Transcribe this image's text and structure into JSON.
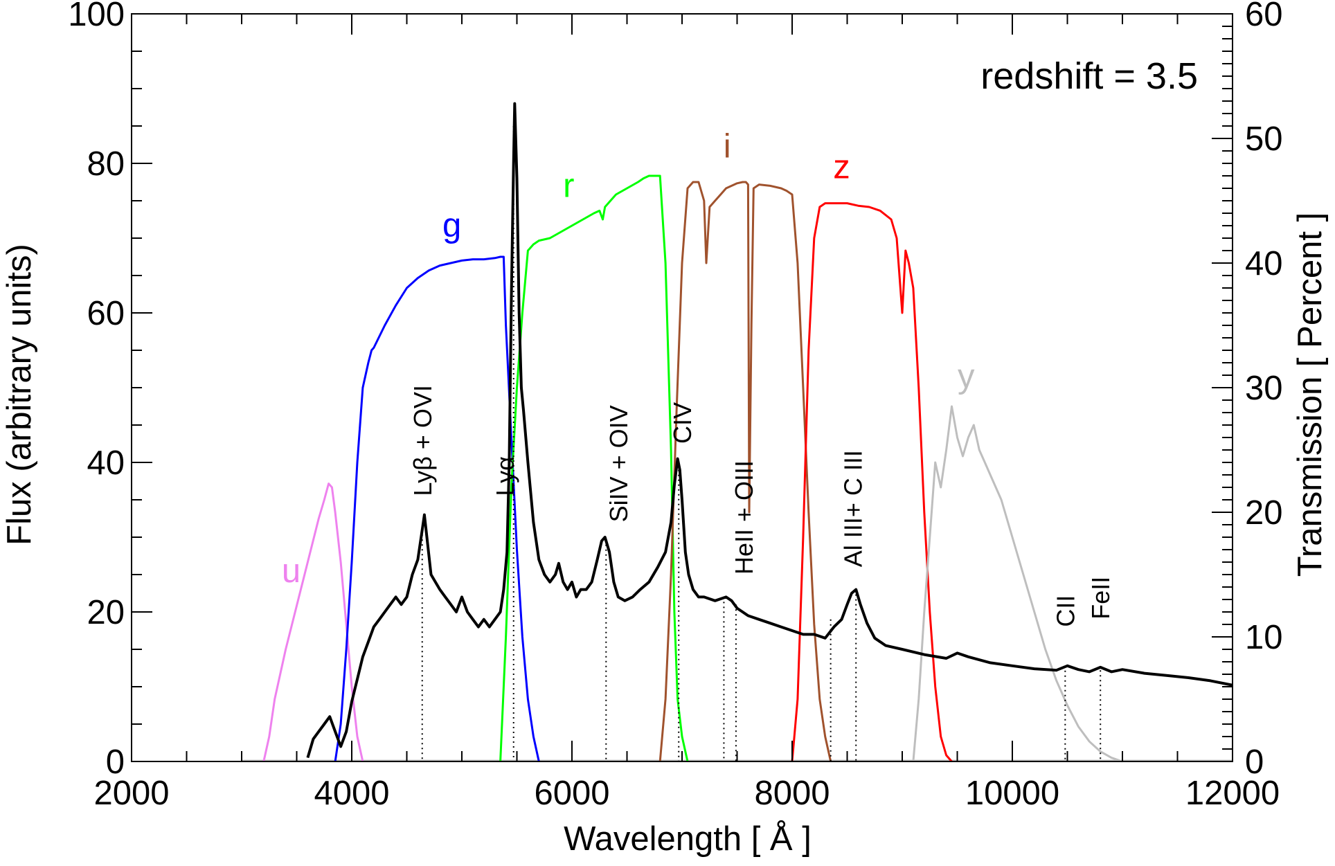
{
  "chart_data": {
    "type": "line",
    "title": "",
    "annotation": "redshift = 3.5",
    "xlabel": "Wavelength [ Å ]",
    "ylabel": "Flux (arbitrary units)",
    "y2label": "Transmission [ Percent ]",
    "xlim": [
      2000,
      12000
    ],
    "ylim": [
      0,
      100
    ],
    "y2lim": [
      0,
      60
    ],
    "xticks": [
      2000,
      4000,
      6000,
      8000,
      10000,
      12000
    ],
    "yticks": [
      0,
      20,
      40,
      60,
      80,
      100
    ],
    "y2ticks": [
      0,
      10,
      20,
      30,
      40,
      50,
      60
    ],
    "spectrum": {
      "name": "quasar spectrum",
      "color": "#000000",
      "x": [
        3600,
        3650,
        3700,
        3750,
        3800,
        3850,
        3900,
        3950,
        4000,
        4050,
        4100,
        4150,
        4200,
        4250,
        4300,
        4350,
        4400,
        4450,
        4500,
        4550,
        4600,
        4640,
        4660,
        4690,
        4720,
        4760,
        4800,
        4850,
        4900,
        4950,
        5000,
        5050,
        5100,
        5150,
        5200,
        5250,
        5300,
        5350,
        5380,
        5410,
        5430,
        5450,
        5470,
        5480,
        5500,
        5520,
        5540,
        5560,
        5600,
        5650,
        5700,
        5750,
        5800,
        5850,
        5880,
        5920,
        5960,
        6000,
        6040,
        6080,
        6130,
        6180,
        6230,
        6270,
        6300,
        6340,
        6380,
        6420,
        6480,
        6550,
        6620,
        6700,
        6780,
        6850,
        6900,
        6930,
        6960,
        6980,
        7000,
        7030,
        7060,
        7100,
        7150,
        7200,
        7300,
        7400,
        7450,
        7500,
        7550,
        7600,
        7700,
        7800,
        7900,
        8000,
        8100,
        8200,
        8300,
        8380,
        8450,
        8500,
        8540,
        8580,
        8620,
        8680,
        8750,
        8850,
        9000,
        9200,
        9400,
        9500,
        9600,
        9800,
        10000,
        10200,
        10400,
        10500,
        10600,
        10700,
        10800,
        10900,
        11000,
        11200,
        11400,
        11600,
        11800,
        12000
      ],
      "y": [
        0.5,
        3,
        4,
        5,
        6,
        4,
        2,
        4,
        8,
        11,
        14,
        16,
        18,
        19,
        20,
        21,
        22,
        21,
        22,
        25,
        27,
        31,
        33,
        29,
        25,
        24,
        23,
        22,
        21,
        20,
        22,
        20,
        19,
        18,
        19,
        18,
        19,
        20,
        23,
        28,
        40,
        62,
        80,
        88,
        78,
        60,
        50,
        47,
        40,
        32,
        27,
        25,
        24,
        25,
        26.5,
        24,
        23,
        24,
        22,
        23,
        23,
        24,
        27,
        29.5,
        30,
        28,
        24,
        22,
        21.5,
        22,
        23,
        24,
        26,
        28,
        32,
        37,
        40.5,
        39,
        35,
        28,
        25,
        23,
        22,
        22,
        21.5,
        22,
        21.5,
        20.5,
        20,
        19.5,
        19,
        18.5,
        18,
        17.5,
        17,
        17,
        16.5,
        18,
        19,
        21,
        22.5,
        23,
        21,
        18.5,
        16.5,
        15.5,
        15,
        14.3,
        13.8,
        14.5,
        14,
        13.2,
        12.8,
        12.4,
        12.2,
        12.8,
        12.3,
        12,
        12.6,
        12,
        12.3,
        11.8,
        11.5,
        11.2,
        10.8,
        10.2
      ]
    },
    "filters": [
      {
        "name": "u",
        "color": "#EE82EE",
        "x": [
          3200,
          3250,
          3300,
          3400,
          3500,
          3600,
          3700,
          3750,
          3790,
          3820,
          3850,
          3900,
          3950,
          4000,
          4050,
          4100
        ],
        "y": [
          0,
          2,
          5,
          9,
          12.5,
          16,
          19.5,
          21,
          22.3,
          22,
          20,
          16,
          11,
          6,
          2,
          0
        ]
      },
      {
        "name": "g",
        "color": "#0000FF",
        "x": [
          3850,
          3900,
          3950,
          4000,
          4050,
          4100,
          4150,
          4180,
          4200,
          4300,
          4400,
          4500,
          4600,
          4700,
          4800,
          4900,
          5000,
          5100,
          5200,
          5300,
          5350,
          5380,
          5400,
          5450,
          5500,
          5550,
          5600,
          5650,
          5700
        ],
        "y": [
          0,
          3,
          9,
          16,
          24,
          30,
          32,
          33,
          33.2,
          35,
          36.6,
          38,
          38.8,
          39.4,
          39.8,
          40,
          40.2,
          40.3,
          40.3,
          40.4,
          40.5,
          40.5,
          35,
          26,
          17,
          10,
          5,
          2,
          0
        ]
      },
      {
        "name": "r",
        "color": "#00FF00",
        "x": [
          5350,
          5400,
          5450,
          5500,
          5550,
          5600,
          5650,
          5700,
          5800,
          5900,
          6000,
          6100,
          6200,
          6250,
          6280,
          6300,
          6350,
          6400,
          6500,
          6600,
          6650,
          6700,
          6750,
          6800,
          6850,
          6900,
          6930,
          6960,
          7000,
          7050
        ],
        "y": [
          0,
          10,
          22,
          30,
          36,
          41,
          41.5,
          41.8,
          42,
          42.5,
          43,
          43.5,
          44,
          44.2,
          43.5,
          44.5,
          45,
          45.5,
          46,
          46.5,
          46.8,
          47,
          47,
          47,
          40,
          25,
          12,
          5,
          2,
          0
        ]
      },
      {
        "name": "i",
        "color": "#A0522D",
        "x": [
          6800,
          6850,
          6900,
          6950,
          7000,
          7050,
          7100,
          7150,
          7200,
          7220,
          7250,
          7300,
          7350,
          7400,
          7500,
          7550,
          7580,
          7600,
          7610,
          7630,
          7650,
          7700,
          7800,
          7900,
          7950,
          8000,
          8050,
          8100,
          8150,
          8200,
          8250,
          8300,
          8350
        ],
        "y": [
          0,
          5,
          15,
          28,
          40,
          46,
          46.5,
          46.5,
          45,
          40,
          44.5,
          45,
          45.5,
          46,
          46.4,
          46.5,
          46.5,
          46.3,
          20,
          35,
          46,
          46.3,
          46.2,
          46,
          45.8,
          45.5,
          40,
          30,
          20,
          11,
          5,
          2,
          0
        ]
      },
      {
        "name": "z",
        "color": "#FF0000",
        "x": [
          8000,
          8050,
          8100,
          8150,
          8200,
          8250,
          8300,
          8400,
          8500,
          8600,
          8700,
          8800,
          8900,
          8950,
          9000,
          9030,
          9060,
          9100,
          9150,
          9200,
          9250,
          9300,
          9350,
          9400,
          9450
        ],
        "y": [
          0,
          5,
          18,
          33,
          42,
          44.5,
          44.8,
          44.8,
          44.8,
          44.6,
          44.5,
          44.2,
          43.5,
          42,
          36,
          41,
          40,
          38,
          30,
          20,
          12,
          6,
          2,
          0.5,
          0
        ]
      },
      {
        "name": "y",
        "color": "#BEBEBE",
        "x": [
          9100,
          9150,
          9200,
          9250,
          9300,
          9350,
          9400,
          9450,
          9500,
          9550,
          9600,
          9650,
          9700,
          9750,
          9800,
          9900,
          10000,
          10100,
          10200,
          10300,
          10400,
          10500,
          10600,
          10700,
          10800,
          10900,
          11000
        ],
        "y": [
          0,
          5,
          12,
          18,
          24,
          22,
          25,
          28.5,
          26,
          24.5,
          26,
          27,
          25,
          24,
          23,
          21,
          18,
          15,
          12,
          9,
          6.5,
          4.5,
          2.8,
          1.6,
          0.8,
          0.3,
          0
        ]
      }
    ],
    "emission_lines": [
      {
        "label": "Lyβ + OVI",
        "x": 4640,
        "y": 31
      },
      {
        "label": "Lyα",
        "x": 5470,
        "y": 85
      },
      {
        "label": "SiIV + OIV",
        "x": 6310,
        "y": 29
      },
      {
        "label": "CIV",
        "x": 6970,
        "y": 39
      },
      {
        "label": "HeII + OIII",
        "x": 7380,
        "y": 22
      },
      {
        "label": "HeII + OIII",
        "x": 7490,
        "y": 21
      },
      {
        "label": "Al III+ C III",
        "x": 8350,
        "y": 19
      },
      {
        "label": "Al III+ C III",
        "x": 8580,
        "y": 23
      },
      {
        "label": "CII",
        "x": 10480,
        "y": 12.8
      },
      {
        "label": "FeII",
        "x": 10800,
        "y": 12.2
      }
    ],
    "line_labels": [
      {
        "text": "Lyβ + OVI",
        "x": 4640,
        "y": 35.5
      },
      {
        "text": "Lyα",
        "x": 5390,
        "y": 35.5
      },
      {
        "text": "SiIV + OIV",
        "x": 6420,
        "y": 32
      },
      {
        "text": "CIV",
        "x": 7000,
        "y": 42.5
      },
      {
        "text": "HeII + OIII",
        "x": 7560,
        "y": 25
      },
      {
        "text": "Al III+ C III",
        "x": 8550,
        "y": 26
      },
      {
        "text": "CII",
        "x": 10480,
        "y": 18
      },
      {
        "text": "FeII",
        "x": 10800,
        "y": 19
      }
    ],
    "band_labels": [
      {
        "text": "u",
        "x": 3450,
        "y": 24,
        "color": "#EE82EE"
      },
      {
        "text": "g",
        "x": 4910,
        "y": 70.2,
        "color": "#0000FF"
      },
      {
        "text": "r",
        "x": 5970,
        "y": 75.5,
        "color": "#00FF00"
      },
      {
        "text": "i",
        "x": 7410,
        "y": 80.8,
        "color": "#A0522D"
      },
      {
        "text": "z",
        "x": 8450,
        "y": 78,
        "color": "#FF0000"
      },
      {
        "text": "y",
        "x": 9580,
        "y": 50,
        "color": "#BEBEBE"
      }
    ]
  }
}
